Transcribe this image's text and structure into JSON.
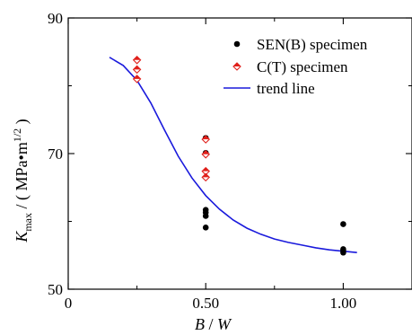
{
  "chart_data": {
    "type": "scatter",
    "xlabel_italic": "B",
    "xlabel_rest": " / ",
    "xlabel_italic2": "W",
    "ylabel_main": "K",
    "ylabel_sub": "max",
    "ylabel_unit": " / ( MPa•m",
    "ylabel_sup": "1/2",
    "ylabel_close": " )",
    "xlim": [
      0,
      1.25
    ],
    "ylim": [
      50,
      90
    ],
    "x_ticks": [
      0,
      0.5,
      1.0
    ],
    "x_tick_labels": [
      "0",
      "0.50",
      "1.00"
    ],
    "y_ticks": [
      50,
      70,
      90
    ],
    "y_tick_labels": [
      "50",
      "70",
      "90"
    ],
    "legend_position": "top-right",
    "grid": false,
    "series": [
      {
        "name": "SEN(B) specimen",
        "marker": "filled-circle",
        "color": "#000000",
        "points": [
          [
            0.5,
            72.3
          ],
          [
            0.5,
            70.1
          ],
          [
            0.5,
            61.7
          ],
          [
            0.5,
            61.3
          ],
          [
            0.5,
            60.8
          ],
          [
            0.5,
            59.1
          ],
          [
            1.0,
            59.6
          ],
          [
            1.0,
            55.9
          ],
          [
            1.0,
            55.7
          ],
          [
            1.0,
            55.4
          ]
        ]
      },
      {
        "name": "C(T) specimen",
        "marker": "half-filled-diamond",
        "color": "#e0201b",
        "points": [
          [
            0.25,
            83.8
          ],
          [
            0.25,
            82.4
          ],
          [
            0.25,
            81.0
          ],
          [
            0.5,
            72.1
          ],
          [
            0.5,
            69.9
          ],
          [
            0.5,
            67.4
          ],
          [
            0.5,
            66.5
          ]
        ]
      },
      {
        "name": "trend line",
        "marker": "line",
        "color": "#1a1adc",
        "points": [
          [
            0.15,
            84.2
          ],
          [
            0.2,
            83.0
          ],
          [
            0.25,
            80.8
          ],
          [
            0.3,
            77.5
          ],
          [
            0.35,
            73.5
          ],
          [
            0.4,
            69.6
          ],
          [
            0.45,
            66.4
          ],
          [
            0.5,
            63.8
          ],
          [
            0.55,
            61.8
          ],
          [
            0.6,
            60.2
          ],
          [
            0.65,
            59.0
          ],
          [
            0.7,
            58.1
          ],
          [
            0.75,
            57.4
          ],
          [
            0.8,
            56.9
          ],
          [
            0.85,
            56.5
          ],
          [
            0.9,
            56.1
          ],
          [
            0.95,
            55.8
          ],
          [
            1.0,
            55.6
          ],
          [
            1.05,
            55.4
          ]
        ]
      }
    ]
  }
}
